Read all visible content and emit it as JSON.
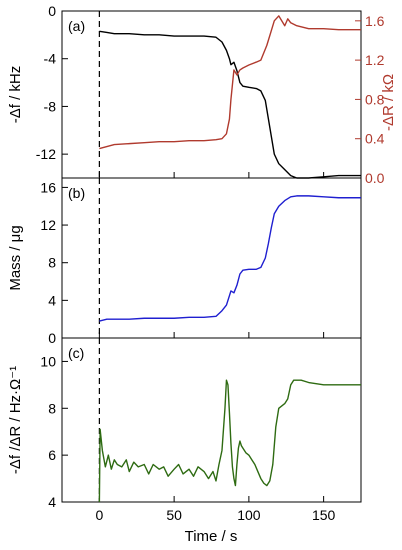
{
  "figure": {
    "xlabel": "Time / s",
    "colors": {
      "black": "#000000",
      "red": "#b03a2e",
      "blue": "#1f1fd0",
      "green": "#2e6b12"
    }
  },
  "chart_data": [
    {
      "type": "line",
      "panel_label": "(a)",
      "xlim": [
        -25,
        175
      ],
      "xticks": [
        0,
        50,
        100,
        150
      ],
      "grid": false,
      "marker_line": {
        "x": 0,
        "style": "dashed"
      },
      "ylabel": "-Δf / kHz",
      "ylim": [
        -14,
        0
      ],
      "yticks": [
        0,
        -4,
        -8,
        -12
      ],
      "ytick_labels": [
        "0",
        "-4",
        "-8",
        "-12"
      ],
      "y2label": "-ΔR / kΩ",
      "y2lim": [
        0,
        1.7
      ],
      "y2ticks": [
        0.0,
        0.4,
        0.8,
        1.2,
        1.6
      ],
      "y2tick_labels": [
        "0.0",
        "0.4",
        "0.8",
        "1.2",
        "1.6"
      ],
      "series": [
        {
          "axis": "left",
          "color": "#000000",
          "points": [
            [
              0,
              -1.7
            ],
            [
              5,
              -1.8
            ],
            [
              10,
              -1.9
            ],
            [
              20,
              -1.9
            ],
            [
              30,
              -2.0
            ],
            [
              40,
              -2.0
            ],
            [
              50,
              -2.1
            ],
            [
              60,
              -2.1
            ],
            [
              70,
              -2.1
            ],
            [
              78,
              -2.2
            ],
            [
              82,
              -2.6
            ],
            [
              85,
              -3.3
            ],
            [
              87,
              -4.0
            ],
            [
              88,
              -4.5
            ],
            [
              90,
              -4.3
            ],
            [
              92,
              -5.0
            ],
            [
              94,
              -6.0
            ],
            [
              96,
              -6.3
            ],
            [
              100,
              -6.4
            ],
            [
              105,
              -6.5
            ],
            [
              108,
              -6.7
            ],
            [
              111,
              -7.5
            ],
            [
              113,
              -9.0
            ],
            [
              115,
              -10.5
            ],
            [
              117,
              -12.0
            ],
            [
              120,
              -12.8
            ],
            [
              124,
              -13.3
            ],
            [
              128,
              -13.8
            ],
            [
              132,
              -14.0
            ],
            [
              140,
              -14.0
            ],
            [
              150,
              -13.9
            ],
            [
              160,
              -13.8
            ],
            [
              175,
              -13.8
            ]
          ]
        },
        {
          "axis": "right",
          "color": "#b03a2e",
          "points": [
            [
              0,
              0.3
            ],
            [
              5,
              0.32
            ],
            [
              10,
              0.34
            ],
            [
              20,
              0.35
            ],
            [
              30,
              0.36
            ],
            [
              40,
              0.37
            ],
            [
              50,
              0.37
            ],
            [
              60,
              0.38
            ],
            [
              70,
              0.38
            ],
            [
              78,
              0.39
            ],
            [
              82,
              0.4
            ],
            [
              85,
              0.45
            ],
            [
              87,
              0.6
            ],
            [
              88,
              0.8
            ],
            [
              89,
              0.95
            ],
            [
              90,
              1.1
            ],
            [
              92,
              1.05
            ],
            [
              94,
              1.1
            ],
            [
              96,
              1.12
            ],
            [
              100,
              1.15
            ],
            [
              105,
              1.18
            ],
            [
              108,
              1.2
            ],
            [
              112,
              1.35
            ],
            [
              115,
              1.5
            ],
            [
              117,
              1.6
            ],
            [
              120,
              1.65
            ],
            [
              124,
              1.55
            ],
            [
              126,
              1.62
            ],
            [
              128,
              1.58
            ],
            [
              132,
              1.55
            ],
            [
              140,
              1.52
            ],
            [
              150,
              1.52
            ],
            [
              160,
              1.51
            ],
            [
              175,
              1.51
            ]
          ]
        }
      ]
    },
    {
      "type": "line",
      "panel_label": "(b)",
      "xlim": [
        -25,
        175
      ],
      "xticks": [
        0,
        50,
        100,
        150
      ],
      "grid": false,
      "marker_line": {
        "x": 0,
        "style": "dashed"
      },
      "ylabel": "Mass / μg",
      "ylim": [
        0,
        17
      ],
      "yticks": [
        0,
        4,
        8,
        12,
        16
      ],
      "ytick_labels": [
        "0",
        "4",
        "8",
        "12",
        "16"
      ],
      "series": [
        {
          "axis": "left",
          "color": "#1f1fd0",
          "points": [
            [
              0,
              1.8
            ],
            [
              5,
              2.0
            ],
            [
              10,
              2.0
            ],
            [
              20,
              2.0
            ],
            [
              30,
              2.1
            ],
            [
              40,
              2.1
            ],
            [
              50,
              2.1
            ],
            [
              60,
              2.2
            ],
            [
              70,
              2.2
            ],
            [
              78,
              2.3
            ],
            [
              82,
              2.9
            ],
            [
              85,
              3.5
            ],
            [
              87,
              4.5
            ],
            [
              88,
              5.0
            ],
            [
              90,
              4.8
            ],
            [
              92,
              5.6
            ],
            [
              94,
              6.8
            ],
            [
              96,
              7.2
            ],
            [
              100,
              7.3
            ],
            [
              105,
              7.3
            ],
            [
              108,
              7.5
            ],
            [
              111,
              8.5
            ],
            [
              113,
              10.0
            ],
            [
              115,
              11.7
            ],
            [
              117,
              13.2
            ],
            [
              120,
              14.0
            ],
            [
              124,
              14.6
            ],
            [
              128,
              15.0
            ],
            [
              132,
              15.1
            ],
            [
              140,
              15.1
            ],
            [
              150,
              15.0
            ],
            [
              160,
              14.9
            ],
            [
              175,
              14.9
            ]
          ]
        }
      ]
    },
    {
      "type": "line",
      "panel_label": "(c)",
      "xlim": [
        -25,
        175
      ],
      "xticks": [
        0,
        50,
        100,
        150
      ],
      "xtick_labels": [
        "0",
        "50",
        "100",
        "150"
      ],
      "grid": false,
      "marker_line": {
        "x": 0,
        "style": "dashed"
      },
      "ylabel": "-Δf /ΔR / Hz·Ω⁻¹",
      "ylim": [
        4,
        11
      ],
      "yticks": [
        4,
        6,
        8,
        10
      ],
      "ytick_labels": [
        "4",
        "6",
        "8",
        "10"
      ],
      "series": [
        {
          "axis": "left",
          "color": "#2e6b12",
          "points": [
            [
              0,
              4.0
            ],
            [
              0.5,
              7.1
            ],
            [
              2,
              6.2
            ],
            [
              4,
              5.5
            ],
            [
              6,
              6.0
            ],
            [
              8,
              5.4
            ],
            [
              10,
              5.8
            ],
            [
              12,
              5.6
            ],
            [
              15,
              5.5
            ],
            [
              18,
              5.8
            ],
            [
              20,
              5.3
            ],
            [
              23,
              5.7
            ],
            [
              26,
              5.5
            ],
            [
              30,
              5.6
            ],
            [
              33,
              5.2
            ],
            [
              36,
              5.6
            ],
            [
              40,
              5.4
            ],
            [
              43,
              5.5
            ],
            [
              46,
              5.1
            ],
            [
              50,
              5.4
            ],
            [
              53,
              5.6
            ],
            [
              56,
              5.2
            ],
            [
              60,
              5.4
            ],
            [
              63,
              5.1
            ],
            [
              66,
              5.5
            ],
            [
              70,
              5.3
            ],
            [
              73,
              5.0
            ],
            [
              76,
              5.3
            ],
            [
              78,
              4.9
            ],
            [
              80,
              5.6
            ],
            [
              82,
              6.2
            ],
            [
              84,
              8.0
            ],
            [
              85,
              9.2
            ],
            [
              86,
              9.0
            ],
            [
              87,
              7.8
            ],
            [
              88,
              6.5
            ],
            [
              89,
              5.5
            ],
            [
              90,
              5.0
            ],
            [
              91,
              4.7
            ],
            [
              92,
              5.6
            ],
            [
              93,
              6.3
            ],
            [
              94,
              6.6
            ],
            [
              95,
              6.4
            ],
            [
              96,
              6.3
            ],
            [
              98,
              6.1
            ],
            [
              100,
              6.0
            ],
            [
              102,
              5.8
            ],
            [
              104,
              5.6
            ],
            [
              106,
              5.3
            ],
            [
              108,
              5.0
            ],
            [
              110,
              4.8
            ],
            [
              112,
              4.7
            ],
            [
              114,
              4.9
            ],
            [
              116,
              5.6
            ],
            [
              118,
              7.2
            ],
            [
              120,
              8.0
            ],
            [
              122,
              8.1
            ],
            [
              124,
              8.2
            ],
            [
              126,
              8.4
            ],
            [
              128,
              9.0
            ],
            [
              130,
              9.2
            ],
            [
              135,
              9.2
            ],
            [
              140,
              9.1
            ],
            [
              150,
              9.0
            ],
            [
              160,
              9.0
            ],
            [
              175,
              9.0
            ]
          ]
        }
      ]
    }
  ]
}
